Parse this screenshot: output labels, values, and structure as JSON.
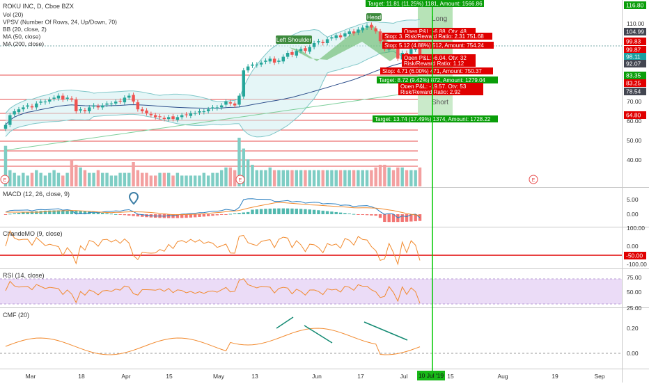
{
  "header": {
    "symbol": "ROKU INC, D, Cboe BZX",
    "indicators": [
      "Vol (20)",
      "VPSV (Number Of Rows, 24, Up/Down, 70)",
      "BB (20, close, 2)",
      "MA (50, close)",
      "MA (200, close)"
    ]
  },
  "panes": {
    "macd": "MACD (12, 26, close, 9)",
    "cmo": "ChandeMO (9, close)",
    "rsi": "RSI (14, close)",
    "cmf": "CMF (20)"
  },
  "x_axis": [
    "Mar",
    "18",
    "Apr",
    "15",
    "May",
    "13",
    "Jun",
    "17",
    "Jul",
    "15",
    "Aug",
    "19",
    "Sep"
  ],
  "cursor_date": "10 Jul '19",
  "price_axis": {
    "ticks": [
      "110.00",
      "100.00",
      "90.00",
      "80.00",
      "70.00",
      "60.00",
      "50.00",
      "40.00"
    ],
    "badges": [
      {
        "text": "116.80",
        "color": "#0a9e0a"
      },
      {
        "text": "104.99",
        "color": "#434651"
      },
      {
        "text": "99.83",
        "color": "#e00000"
      },
      {
        "text": "99.87",
        "color": "#e00000"
      },
      {
        "text": "98.11",
        "color": "#1a9fa0"
      },
      {
        "text": "92.07",
        "color": "#434651"
      },
      {
        "text": "83.35",
        "color": "#0a9e0a"
      },
      {
        "text": "83.25",
        "color": "#e00000"
      },
      {
        "text": "78.54",
        "color": "#434651"
      },
      {
        "text": "64.80",
        "color": "#e00000"
      }
    ]
  },
  "macd_axis": [
    "5.00",
    "0.00"
  ],
  "cmo_axis": [
    "100.00",
    "0.00",
    "-100.00"
  ],
  "cmo_badge": "-50.00",
  "rsi_axis": [
    "75.00",
    "50.00",
    "25.00"
  ],
  "cmf_axis": [
    "0.20",
    "0.00"
  ],
  "patterns": {
    "left_shoulder": "Left Shoulder",
    "head": "Head"
  },
  "positions": {
    "long": "Long",
    "short": "Short"
  },
  "trade_labels": [
    {
      "text": "Target: 11.81 (11.25%) 1181, Amount: 1566.86",
      "type": "target"
    },
    {
      "text": "Open P&L: -6.88, Qty: 48",
      "type": "stop"
    },
    {
      "text": "Stop: 3. Risk/Reward Ratio: 2.31 751.68",
      "type": "stop"
    },
    {
      "text": "Stop: 5.12 (4.88%) 512, Amount: 754.24",
      "type": "stop"
    },
    {
      "text": "Open P&L: -6.04, Qty: 32",
      "type": "stop"
    },
    {
      "text": "Risk/Reward Ratio: 1.12",
      "type": "stop"
    },
    {
      "text": "Stop: 4.71 (6.00%) 471, Amount: 750.37",
      "type": "stop"
    },
    {
      "text": "Target: 8.72 (9.42%) 872, Amount: 1279.04",
      "type": "target"
    },
    {
      "text": "Open P&L: -19.57, Qty: 53",
      "type": "stop"
    },
    {
      "text": "Risk/Reward Ratio: 2.92",
      "type": "stop"
    },
    {
      "text": "Target: 13.74 (17.49%) 1374, Amount: 1728.22",
      "type": "target"
    }
  ],
  "earnings_marker": "E",
  "colors": {
    "up": "#26a69a",
    "down": "#ef5350",
    "target": "#0a9e0a",
    "stop": "#e00000",
    "accent": "#1a9fa0"
  },
  "chart_data": {
    "type": "candlestick",
    "title": "ROKU INC, D, Cboe BZX",
    "x": [
      "Feb 22",
      "Feb 25",
      "Feb 26",
      "Feb 27",
      "Feb 28",
      "Mar 1",
      "Mar 4",
      "Mar 5",
      "Mar 6",
      "Mar 7",
      "Mar 8",
      "Mar 11",
      "Mar 12",
      "Mar 13",
      "Mar 14",
      "Mar 15",
      "Mar 18",
      "Mar 19",
      "Mar 20",
      "Mar 21",
      "Mar 22",
      "Mar 25",
      "Mar 26",
      "Mar 27",
      "Mar 28",
      "Mar 29",
      "Apr 1",
      "Apr 2",
      "Apr 3",
      "Apr 4",
      "Apr 5",
      "Apr 8",
      "Apr 9",
      "Apr 10",
      "Apr 11",
      "Apr 12",
      "Apr 15",
      "Apr 16",
      "Apr 17",
      "Apr 18",
      "Apr 22",
      "Apr 23",
      "Apr 24",
      "Apr 25",
      "Apr 26",
      "Apr 29",
      "Apr 30",
      "May 1",
      "May 2",
      "May 3",
      "May 6",
      "May 7",
      "May 8",
      "May 9",
      "May 10",
      "May 13",
      "May 14",
      "May 15",
      "May 16",
      "May 17",
      "May 20",
      "May 21",
      "May 22",
      "May 23",
      "May 24",
      "May 28",
      "May 29",
      "May 30",
      "May 31",
      "Jun 3",
      "Jun 4",
      "Jun 5",
      "Jun 6",
      "Jun 7",
      "Jun 10",
      "Jun 11",
      "Jun 12",
      "Jun 13",
      "Jun 14",
      "Jun 17",
      "Jun 18",
      "Jun 19",
      "Jun 20",
      "Jun 21",
      "Jun 24",
      "Jun 25",
      "Jun 26",
      "Jun 27",
      "Jun 28",
      "Jul 1",
      "Jul 2",
      "Jul 3",
      "Jul 5",
      "Jul 8",
      "Jul 9"
    ],
    "close": [
      58,
      63,
      65,
      66,
      67,
      68,
      67,
      69,
      70,
      70,
      71,
      72,
      73,
      71,
      72,
      71,
      65,
      66,
      65,
      67,
      68,
      67,
      68,
      69,
      69,
      70,
      70,
      72,
      73,
      70,
      66,
      65,
      64,
      63,
      62,
      62,
      61,
      62,
      61,
      62,
      63,
      63,
      64,
      64,
      65,
      65,
      66,
      67,
      67,
      68,
      70,
      69,
      68,
      73,
      86,
      88,
      89,
      89,
      90,
      91,
      92,
      90,
      91,
      93,
      95,
      94,
      96,
      97,
      96,
      98,
      100,
      101,
      100,
      102,
      103,
      104,
      103,
      105,
      106,
      105,
      107,
      108,
      109,
      108,
      106,
      101,
      97,
      99,
      98,
      92,
      95,
      94,
      97,
      98,
      92
    ],
    "volume_millions": [
      15,
      6,
      5,
      4,
      5,
      4,
      5,
      6,
      5,
      4,
      5,
      6,
      5,
      4,
      5,
      10,
      8,
      7,
      6,
      5,
      5,
      6,
      5,
      5,
      4,
      4,
      5,
      5,
      5,
      9,
      6,
      5,
      5,
      4,
      4,
      5,
      5,
      5,
      4,
      5,
      4,
      4,
      4,
      4,
      4,
      5,
      4,
      5,
      5,
      6,
      7,
      7,
      6,
      18,
      14,
      10,
      8,
      6,
      6,
      6,
      7,
      6,
      6,
      6,
      6,
      6,
      6,
      6,
      6,
      6,
      6,
      6,
      6,
      6,
      6,
      6,
      6,
      6,
      6,
      6,
      6,
      6,
      6,
      6,
      7,
      8,
      8,
      7,
      6,
      7,
      7,
      6,
      6,
      6,
      7
    ],
    "overlays": [
      "Bollinger Bands (20, 2)",
      "MA 50",
      "MA 200"
    ],
    "ylim": [
      30,
      120
    ]
  }
}
